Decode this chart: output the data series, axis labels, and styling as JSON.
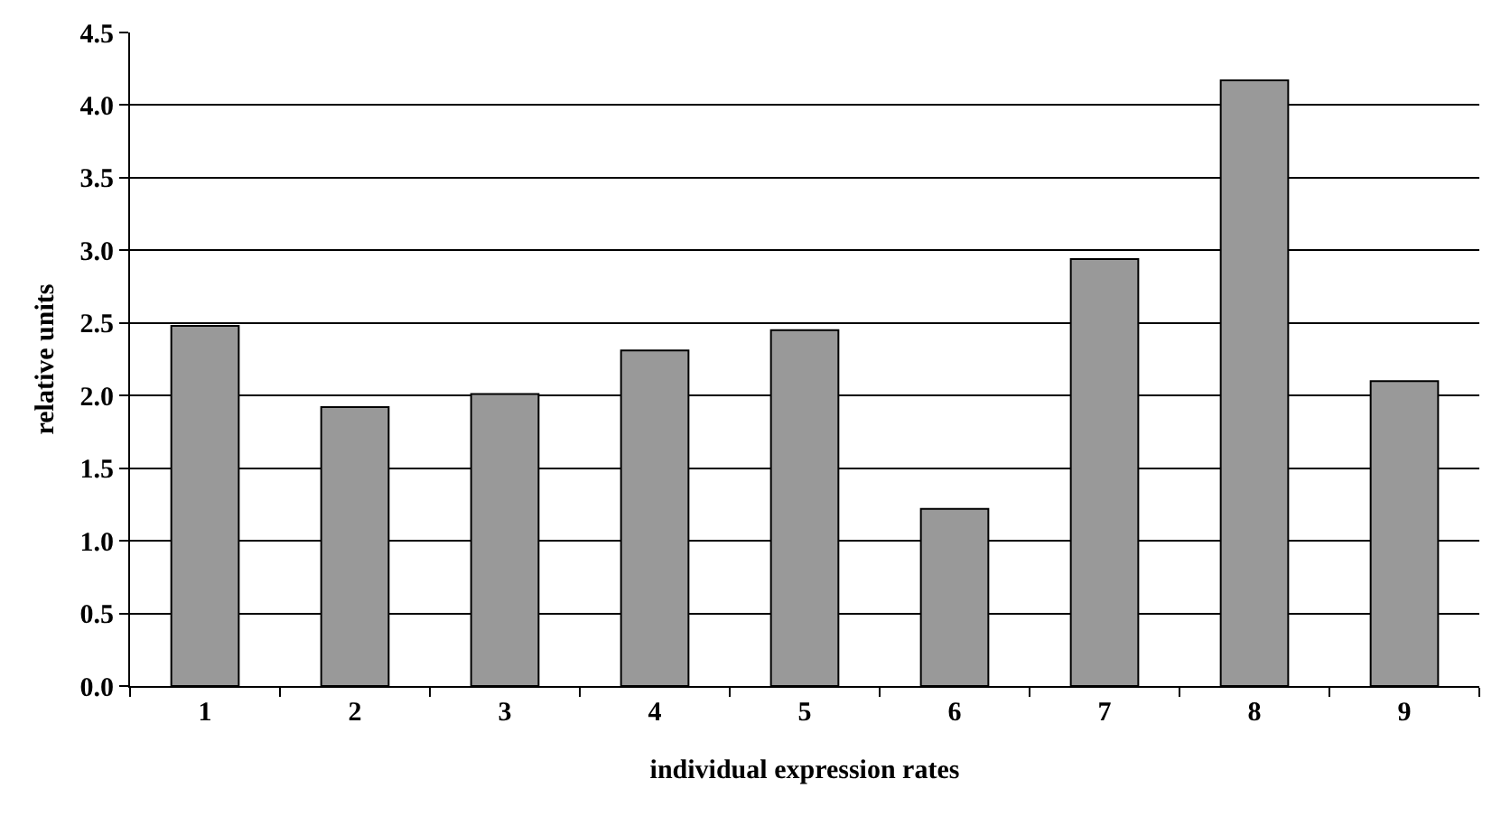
{
  "chart_data": {
    "type": "bar",
    "xlabel": "individual expression rates",
    "ylabel": "relative units",
    "categories": [
      "1",
      "2",
      "3",
      "4",
      "5",
      "6",
      "7",
      "8",
      "9"
    ],
    "values": [
      2.48,
      1.92,
      2.01,
      2.31,
      2.45,
      1.22,
      2.94,
      4.17,
      2.1
    ],
    "color": "#999999",
    "ylim": [
      0,
      4.5
    ],
    "yticks": [
      {
        "value": 0,
        "label": "0.0"
      },
      {
        "value": 0.5,
        "label": "0.5"
      },
      {
        "value": 1,
        "label": "1.0"
      },
      {
        "value": 1.5,
        "label": "1.5"
      },
      {
        "value": 2,
        "label": "2.0"
      },
      {
        "value": 2.5,
        "label": "2.5"
      },
      {
        "value": 3,
        "label": "3.0"
      },
      {
        "value": 3.5,
        "label": "3.5"
      },
      {
        "value": 4,
        "label": "4.0"
      },
      {
        "value": 4.5,
        "label": "4.5"
      }
    ],
    "grid": "y",
    "legend": false
  }
}
